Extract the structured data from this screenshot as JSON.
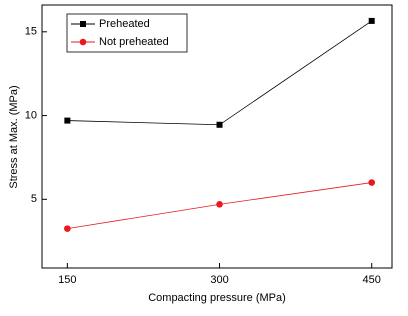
{
  "chart_data": {
    "type": "line",
    "x_label": "Compacting pressure (MPa)",
    "y_label": "Stress at Max. (MPa)",
    "x": [
      150,
      300,
      450
    ],
    "series": [
      {
        "name": "Preheated",
        "color": "#000000",
        "line_color": "#000000",
        "marker": "square",
        "values": [
          9.7,
          9.45,
          15.65
        ]
      },
      {
        "name": "Not preheated",
        "color": "#e8191f",
        "line_color": "#e8191f",
        "marker": "circle",
        "values": [
          3.25,
          4.7,
          6.0
        ]
      }
    ],
    "xlim": [
      125,
      470
    ],
    "xticks": [
      150,
      300,
      450
    ],
    "ylim": [
      0.9,
      16.6
    ],
    "yticks": [
      5,
      10,
      15
    ],
    "legend": "upper-left",
    "grid": false
  }
}
